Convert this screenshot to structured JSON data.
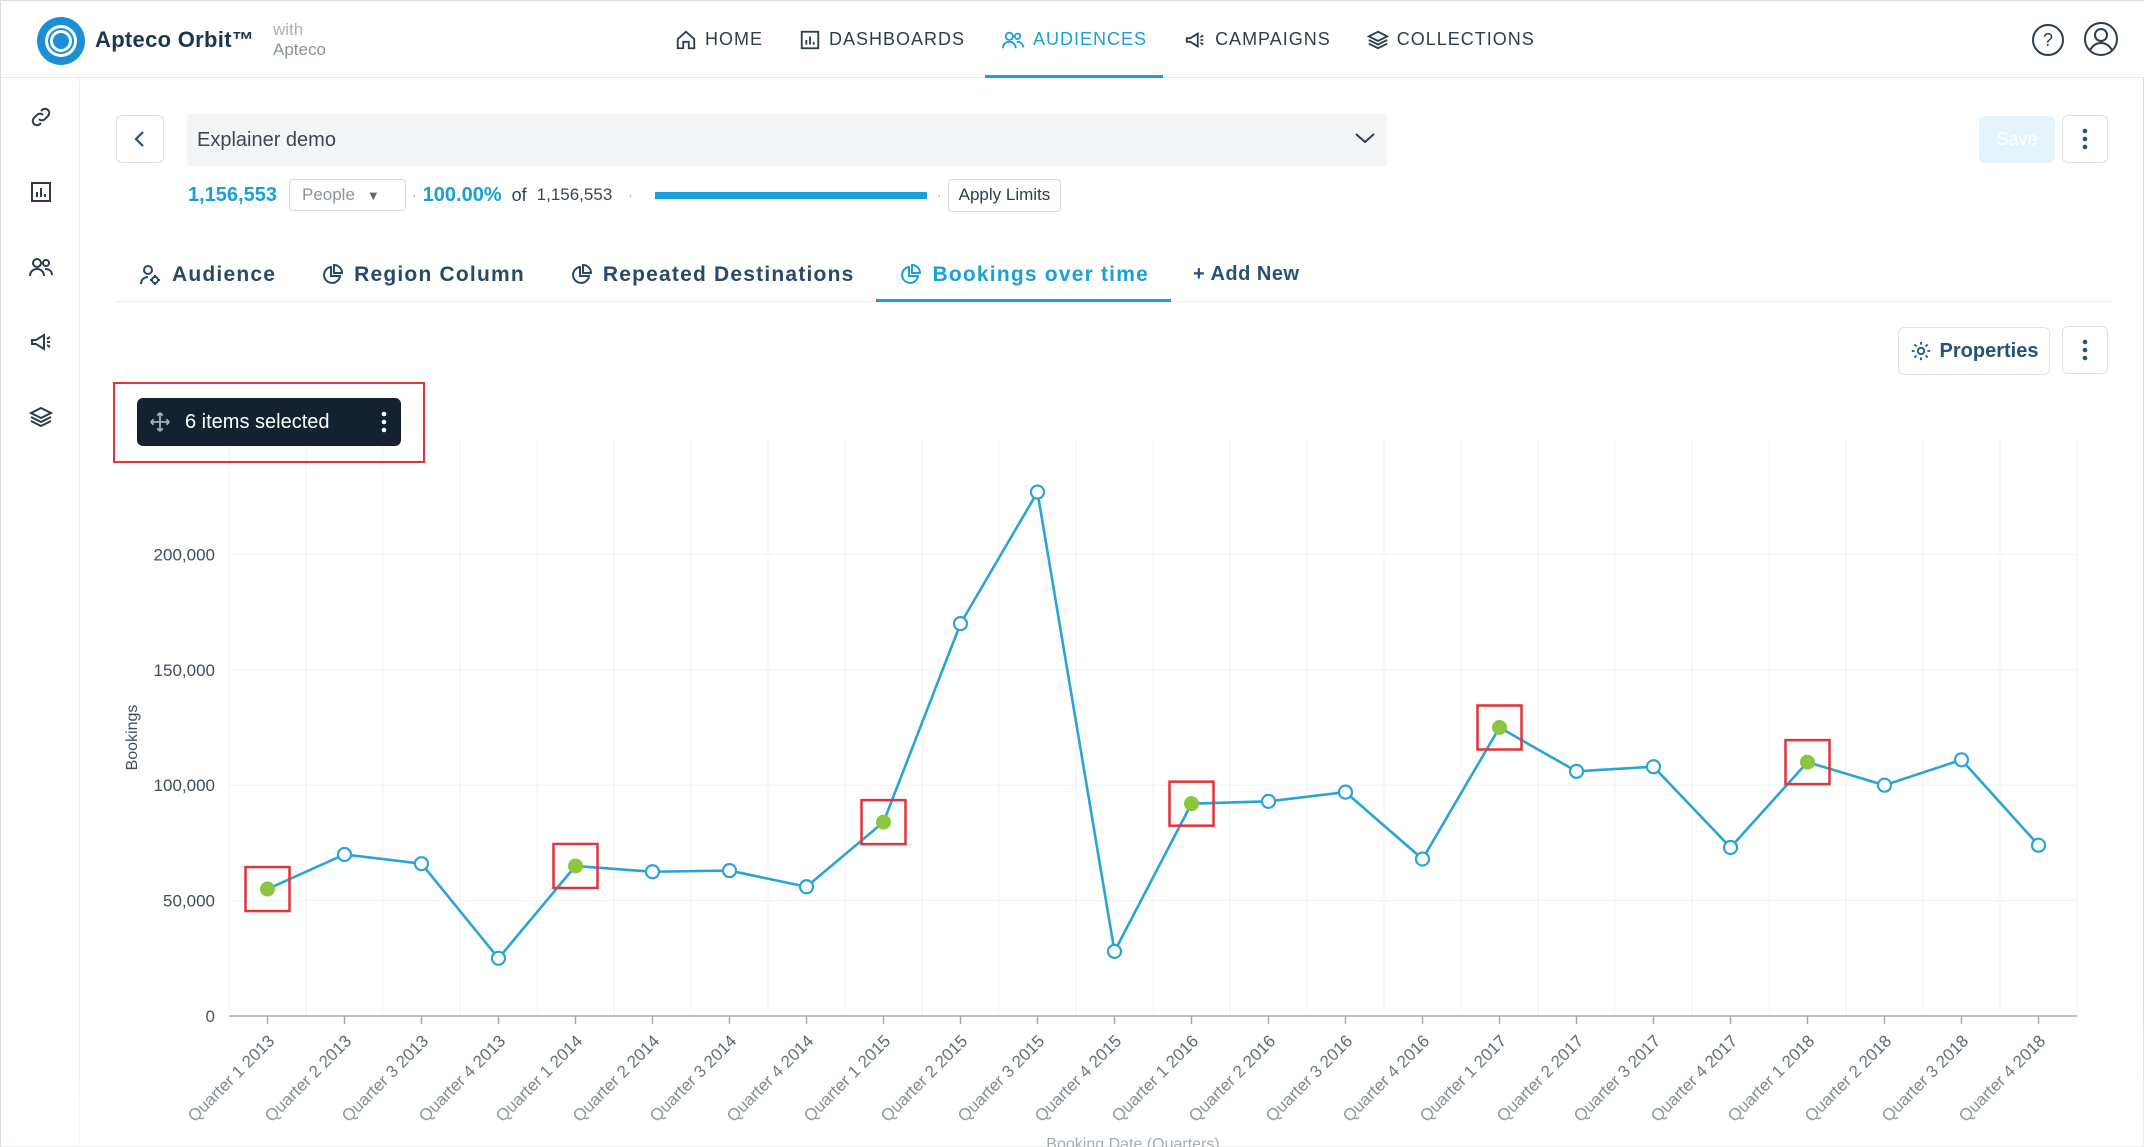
{
  "app": {
    "brand": "Apteco Orbit™",
    "with_label": "with",
    "with_name": "Apteco"
  },
  "nav": {
    "items": [
      {
        "label": "HOME",
        "icon": "home-icon"
      },
      {
        "label": "DASHBOARDS",
        "icon": "dashboard-icon"
      },
      {
        "label": "AUDIENCES",
        "icon": "audiences-icon",
        "active": true
      },
      {
        "label": "CAMPAIGNS",
        "icon": "megaphone-icon"
      },
      {
        "label": "COLLECTIONS",
        "icon": "layers-icon"
      }
    ]
  },
  "rail": [
    "link-icon",
    "dashboard-icon",
    "audiences-icon",
    "megaphone-icon",
    "layers-icon"
  ],
  "header": {
    "audience_name": "Explainer demo",
    "save_label": "Save"
  },
  "stats": {
    "count": "1,156,553",
    "unit": "People",
    "percent": "100.00%",
    "of_label": "of",
    "total": "1,156,553",
    "progress_fraction": 1.0,
    "apply_limits": "Apply Limits"
  },
  "tabs": [
    {
      "label": "Audience",
      "icon": "audience-icon"
    },
    {
      "label": "Region Column",
      "icon": "pie-chart-icon"
    },
    {
      "label": "Repeated Destinations",
      "icon": "pie-chart-icon"
    },
    {
      "label": "Bookings over time",
      "icon": "pie-chart-icon",
      "active": true
    },
    {
      "label": "+ Add New",
      "icon": ""
    }
  ],
  "toolbar": {
    "properties_label": "Properties",
    "selection_label": "6 items selected"
  },
  "colors": {
    "accent": "#1aa0d8",
    "line": "#2aa3d6",
    "selected_point": "#8cc63f",
    "highlight_box": "#e0343a"
  },
  "chart_data": {
    "type": "line",
    "xlabel": "Booking Date (Quarters)",
    "ylabel": "Bookings",
    "ylim": [
      0,
      250000
    ],
    "yticks": [
      0,
      50000,
      100000,
      150000,
      200000
    ],
    "ytick_labels": [
      "0",
      "50,000",
      "100,000",
      "150,000",
      "200,000"
    ],
    "grid": true,
    "categories": [
      "Quarter 1 2013",
      "Quarter 2 2013",
      "Quarter 3 2013",
      "Quarter 4 2013",
      "Quarter 1 2014",
      "Quarter 2 2014",
      "Quarter 3 2014",
      "Quarter 4 2014",
      "Quarter 1 2015",
      "Quarter 2 2015",
      "Quarter 3 2015",
      "Quarter 4 2015",
      "Quarter 1 2016",
      "Quarter 2 2016",
      "Quarter 3 2016",
      "Quarter 4 2016",
      "Quarter 1 2017",
      "Quarter 2 2017",
      "Quarter 3 2017",
      "Quarter 4 2017",
      "Quarter 1 2018",
      "Quarter 2 2018",
      "Quarter 3 2018",
      "Quarter 4 2018"
    ],
    "series": [
      {
        "values": [
          55000,
          70000,
          66000,
          25000,
          65000,
          62500,
          63000,
          56000,
          84000,
          170000,
          227000,
          28000,
          92000,
          93000,
          97000,
          68000,
          125000,
          106000,
          108000,
          73000,
          110000,
          100000,
          111000,
          74000
        ],
        "selected": [
          0,
          4,
          8,
          12,
          16,
          20
        ]
      }
    ]
  }
}
